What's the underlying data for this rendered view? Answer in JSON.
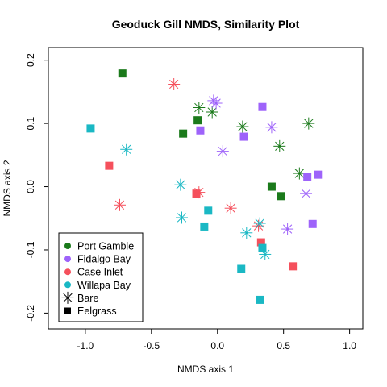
{
  "chart_data": {
    "type": "scatter",
    "title": "Geoduck Gill NMDS, Similarity Plot",
    "xlabel": "NMDS axis 1",
    "ylabel": "NMDS axis 2",
    "xlim": [
      -1.28,
      1.1
    ],
    "ylim": [
      -0.225,
      0.22
    ],
    "xticks": [
      -1.0,
      -0.5,
      0.0,
      0.5,
      1.0
    ],
    "xtick_labels": [
      "-1.0",
      "-0.5",
      "0.0",
      "0.5",
      "1.0"
    ],
    "yticks": [
      -0.2,
      -0.1,
      0.0,
      0.1,
      0.2
    ],
    "ytick_labels": [
      "-0.2",
      "-0.1",
      "0.0",
      "0.1",
      "0.2"
    ],
    "grid": false,
    "legend_position": "bottom-left",
    "groups": [
      {
        "name": "Port Gamble",
        "color": "#1b7a1b"
      },
      {
        "name": "Fidalgo Bay",
        "color": "#9e63fa"
      },
      {
        "name": "Case Inlet",
        "color": "#f5505c"
      },
      {
        "name": "Willapa Bay",
        "color": "#1ab8c4"
      }
    ],
    "treatments": [
      {
        "name": "Bare",
        "marker": "asterisk"
      },
      {
        "name": "Eelgrass",
        "marker": "square"
      }
    ],
    "points": [
      {
        "group": "Port Gamble",
        "treatment": "Eelgrass",
        "x": -0.72,
        "y": 0.179
      },
      {
        "group": "Port Gamble",
        "treatment": "Eelgrass",
        "x": -0.15,
        "y": 0.105
      },
      {
        "group": "Port Gamble",
        "treatment": "Eelgrass",
        "x": -0.26,
        "y": 0.084
      },
      {
        "group": "Port Gamble",
        "treatment": "Eelgrass",
        "x": 0.41,
        "y": 0.0
      },
      {
        "group": "Port Gamble",
        "treatment": "Eelgrass",
        "x": 0.48,
        "y": -0.015
      },
      {
        "group": "Port Gamble",
        "treatment": "Bare",
        "x": -0.14,
        "y": 0.125
      },
      {
        "group": "Port Gamble",
        "treatment": "Bare",
        "x": -0.04,
        "y": 0.118
      },
      {
        "group": "Port Gamble",
        "treatment": "Bare",
        "x": 0.19,
        "y": 0.095
      },
      {
        "group": "Port Gamble",
        "treatment": "Bare",
        "x": 0.69,
        "y": 0.1
      },
      {
        "group": "Port Gamble",
        "treatment": "Bare",
        "x": 0.47,
        "y": 0.064
      },
      {
        "group": "Port Gamble",
        "treatment": "Bare",
        "x": 0.62,
        "y": 0.021
      },
      {
        "group": "Fidalgo Bay",
        "treatment": "Eelgrass",
        "x": 0.34,
        "y": 0.126
      },
      {
        "group": "Fidalgo Bay",
        "treatment": "Eelgrass",
        "x": -0.13,
        "y": 0.089
      },
      {
        "group": "Fidalgo Bay",
        "treatment": "Eelgrass",
        "x": 0.2,
        "y": 0.079
      },
      {
        "group": "Fidalgo Bay",
        "treatment": "Eelgrass",
        "x": 0.68,
        "y": 0.015
      },
      {
        "group": "Fidalgo Bay",
        "treatment": "Eelgrass",
        "x": 0.76,
        "y": 0.019
      },
      {
        "group": "Fidalgo Bay",
        "treatment": "Eelgrass",
        "x": 0.72,
        "y": -0.059
      },
      {
        "group": "Fidalgo Bay",
        "treatment": "Bare",
        "x": -0.03,
        "y": 0.136
      },
      {
        "group": "Fidalgo Bay",
        "treatment": "Bare",
        "x": -0.01,
        "y": 0.132
      },
      {
        "group": "Fidalgo Bay",
        "treatment": "Bare",
        "x": 0.41,
        "y": 0.094
      },
      {
        "group": "Fidalgo Bay",
        "treatment": "Bare",
        "x": 0.04,
        "y": 0.056
      },
      {
        "group": "Fidalgo Bay",
        "treatment": "Bare",
        "x": 0.67,
        "y": -0.011
      },
      {
        "group": "Fidalgo Bay",
        "treatment": "Bare",
        "x": 0.53,
        "y": -0.067
      },
      {
        "group": "Case Inlet",
        "treatment": "Eelgrass",
        "x": -0.82,
        "y": 0.033
      },
      {
        "group": "Case Inlet",
        "treatment": "Eelgrass",
        "x": -0.16,
        "y": -0.011
      },
      {
        "group": "Case Inlet",
        "treatment": "Eelgrass",
        "x": 0.33,
        "y": -0.088
      },
      {
        "group": "Case Inlet",
        "treatment": "Eelgrass",
        "x": 0.57,
        "y": -0.126
      },
      {
        "group": "Case Inlet",
        "treatment": "Bare",
        "x": -0.33,
        "y": 0.162
      },
      {
        "group": "Case Inlet",
        "treatment": "Bare",
        "x": -0.74,
        "y": -0.029
      },
      {
        "group": "Case Inlet",
        "treatment": "Bare",
        "x": -0.14,
        "y": -0.009
      },
      {
        "group": "Case Inlet",
        "treatment": "Bare",
        "x": 0.1,
        "y": -0.034
      },
      {
        "group": "Case Inlet",
        "treatment": "Bare",
        "x": 0.31,
        "y": -0.062
      },
      {
        "group": "Willapa Bay",
        "treatment": "Eelgrass",
        "x": -0.96,
        "y": 0.092
      },
      {
        "group": "Willapa Bay",
        "treatment": "Eelgrass",
        "x": -0.07,
        "y": -0.038
      },
      {
        "group": "Willapa Bay",
        "treatment": "Eelgrass",
        "x": -0.1,
        "y": -0.063
      },
      {
        "group": "Willapa Bay",
        "treatment": "Eelgrass",
        "x": 0.34,
        "y": -0.097
      },
      {
        "group": "Willapa Bay",
        "treatment": "Eelgrass",
        "x": 0.18,
        "y": -0.13
      },
      {
        "group": "Willapa Bay",
        "treatment": "Eelgrass",
        "x": 0.32,
        "y": -0.179
      },
      {
        "group": "Willapa Bay",
        "treatment": "Bare",
        "x": -0.69,
        "y": 0.059
      },
      {
        "group": "Willapa Bay",
        "treatment": "Bare",
        "x": -0.28,
        "y": 0.003
      },
      {
        "group": "Willapa Bay",
        "treatment": "Bare",
        "x": -0.27,
        "y": -0.049
      },
      {
        "group": "Willapa Bay",
        "treatment": "Bare",
        "x": 0.32,
        "y": -0.058
      },
      {
        "group": "Willapa Bay",
        "treatment": "Bare",
        "x": 0.22,
        "y": -0.073
      },
      {
        "group": "Willapa Bay",
        "treatment": "Bare",
        "x": 0.36,
        "y": -0.107
      }
    ]
  }
}
